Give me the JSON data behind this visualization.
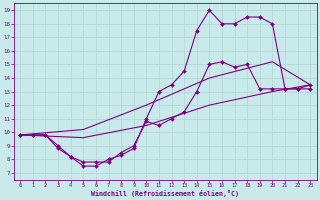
{
  "background_color": "#c8eaea",
  "grid_color": "#b8d8d8",
  "line_color": "#800080",
  "xlabel": "Windchill (Refroidissement éolien,°C)",
  "xlim": [
    -0.5,
    23.5
  ],
  "ylim": [
    6.5,
    19.5
  ],
  "xticks": [
    0,
    1,
    2,
    3,
    4,
    5,
    6,
    7,
    8,
    9,
    10,
    11,
    12,
    13,
    14,
    15,
    16,
    17,
    18,
    19,
    20,
    21,
    22,
    23
  ],
  "yticks": [
    7,
    8,
    9,
    10,
    11,
    12,
    13,
    14,
    15,
    16,
    17,
    18,
    19
  ],
  "series": [
    {
      "x": [
        0,
        1,
        2,
        3,
        4,
        5,
        6,
        7,
        8,
        9,
        10,
        11,
        12,
        13,
        14,
        15,
        16,
        17,
        18,
        19,
        20,
        21,
        22,
        23
      ],
      "y": [
        9.8,
        9.8,
        9.8,
        9.0,
        8.2,
        7.8,
        7.8,
        7.8,
        8.5,
        9.0,
        10.8,
        10.5,
        11.0,
        11.5,
        13.0,
        15.0,
        15.2,
        14.8,
        15.0,
        13.2,
        13.2,
        13.2,
        13.2,
        13.2
      ],
      "marker": true
    },
    {
      "x": [
        0,
        1,
        2,
        3,
        4,
        5,
        6,
        7,
        8,
        9,
        10,
        11,
        12,
        13,
        14,
        15,
        16,
        17,
        18,
        19,
        20,
        21,
        22,
        23
      ],
      "y": [
        9.8,
        9.8,
        9.8,
        8.8,
        8.2,
        7.5,
        7.5,
        8.0,
        8.3,
        8.8,
        11.0,
        13.0,
        13.5,
        14.5,
        17.5,
        19.0,
        18.0,
        18.0,
        18.5,
        18.5,
        18.0,
        13.2,
        13.2,
        13.5
      ],
      "marker": true
    },
    {
      "x": [
        0,
        5,
        10,
        15,
        20,
        23
      ],
      "y": [
        9.8,
        9.6,
        10.5,
        12.0,
        13.0,
        13.5
      ],
      "marker": false
    },
    {
      "x": [
        0,
        5,
        10,
        15,
        20,
        23
      ],
      "y": [
        9.8,
        10.2,
        12.0,
        14.0,
        15.2,
        13.5
      ],
      "marker": false
    }
  ]
}
